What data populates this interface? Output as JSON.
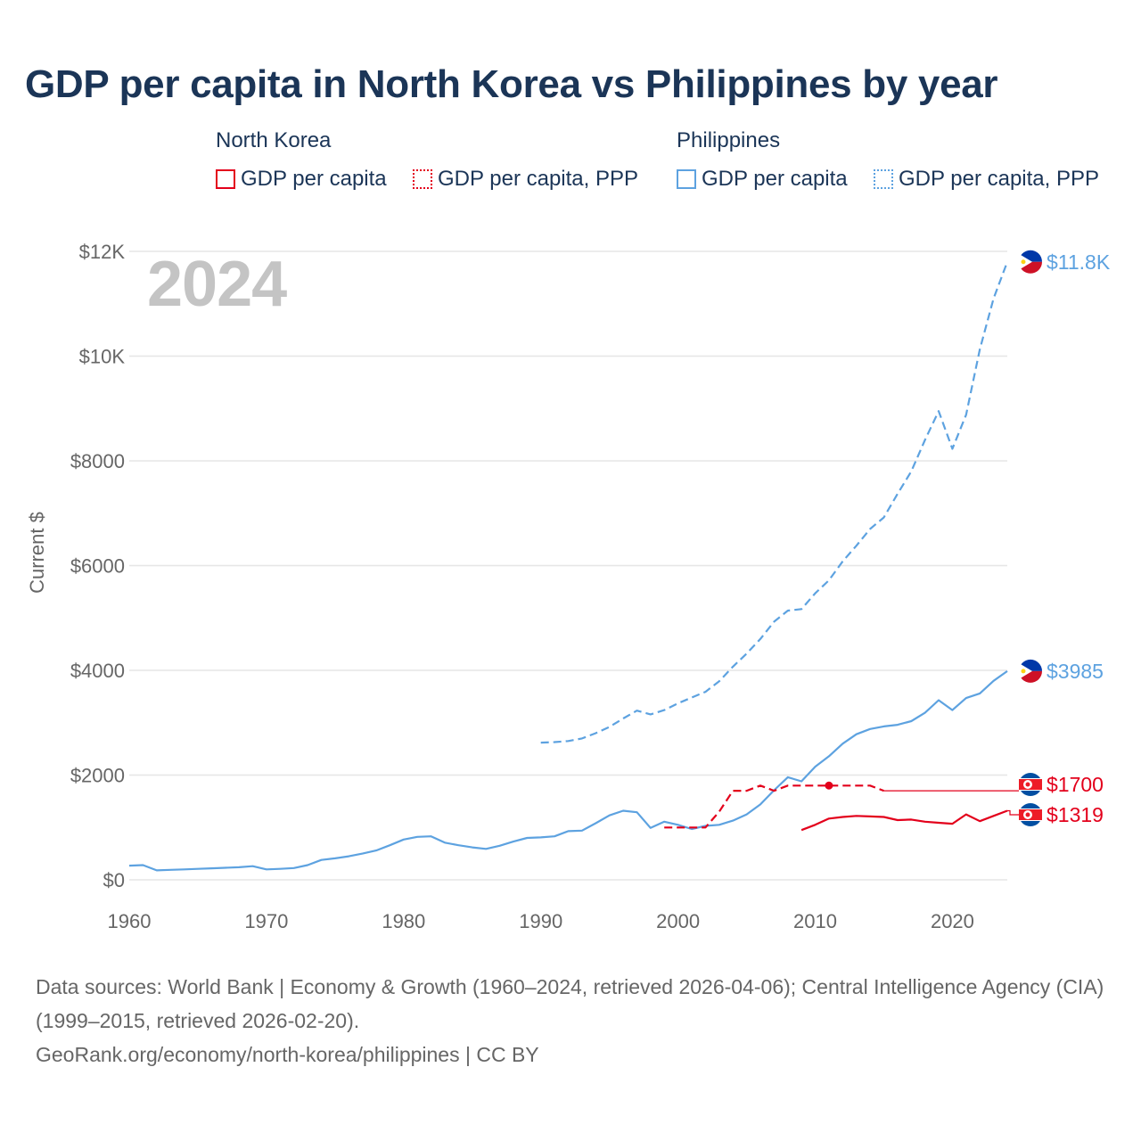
{
  "title": "GDP per capita in North Korea vs Philippines by year",
  "legend": {
    "groups": [
      {
        "name": "North Korea",
        "items": [
          "GDP per capita",
          "GDP per capita, PPP"
        ],
        "color": "#e3001b"
      },
      {
        "name": "Philippines",
        "items": [
          "GDP per capita",
          "GDP per capita, PPP"
        ],
        "color": "#5da2e0"
      }
    ]
  },
  "year_label": "2024",
  "colors": {
    "north_korea": "#e3001b",
    "philippines": "#5da2e0",
    "title": "#1b3557",
    "grid": "#e6e6e6",
    "axis_text": "#666666"
  },
  "chart_data": {
    "type": "line",
    "title": "GDP per capita in North Korea vs Philippines by year",
    "xlabel": "",
    "ylabel": "Current $",
    "xlim": [
      1960,
      2024
    ],
    "ylim": [
      0,
      12000
    ],
    "x_ticks": [
      1960,
      1970,
      1980,
      1990,
      2000,
      2010,
      2020
    ],
    "x_tick_labels": [
      "1960",
      "1970",
      "1980",
      "1990",
      "2000",
      "2010",
      "2020"
    ],
    "y_ticks": [
      0,
      2000,
      4000,
      6000,
      8000,
      10000,
      12000
    ],
    "y_tick_labels": [
      "$0",
      "$2000",
      "$4000",
      "$6000",
      "$8000",
      "$10K",
      "$12K"
    ],
    "grid": true,
    "series": [
      {
        "name": "Philippines GDP per capita, PPP",
        "country": "Philippines",
        "style": "dashed",
        "color": "#5da2e0",
        "x": [
          1990,
          1991,
          1992,
          1993,
          1994,
          1995,
          1996,
          1997,
          1998,
          1999,
          2000,
          2001,
          2002,
          2003,
          2004,
          2005,
          2006,
          2007,
          2008,
          2009,
          2010,
          2011,
          2012,
          2013,
          2014,
          2015,
          2016,
          2017,
          2018,
          2019,
          2020,
          2021,
          2022,
          2023,
          2024
        ],
        "y": [
          2620,
          2630,
          2650,
          2700,
          2800,
          2920,
          3080,
          3230,
          3160,
          3240,
          3370,
          3480,
          3590,
          3790,
          4070,
          4320,
          4600,
          4930,
          5140,
          5170,
          5470,
          5720,
          6080,
          6380,
          6700,
          6920,
          7370,
          7800,
          8400,
          8950,
          8230,
          8880,
          10130,
          11100,
          11800
        ],
        "end_label": "$11.8K"
      },
      {
        "name": "Philippines GDP per capita",
        "country": "Philippines",
        "style": "solid",
        "color": "#5da2e0",
        "x": [
          1960,
          1961,
          1962,
          1963,
          1964,
          1965,
          1966,
          1967,
          1968,
          1969,
          1970,
          1971,
          1972,
          1973,
          1974,
          1975,
          1976,
          1977,
          1978,
          1979,
          1980,
          1981,
          1982,
          1983,
          1984,
          1985,
          1986,
          1987,
          1988,
          1989,
          1990,
          1991,
          1992,
          1993,
          1994,
          1995,
          1996,
          1997,
          1998,
          1999,
          2000,
          2001,
          2002,
          2003,
          2004,
          2005,
          2006,
          2007,
          2008,
          2009,
          2010,
          2011,
          2012,
          2013,
          2014,
          2015,
          2016,
          2017,
          2018,
          2019,
          2020,
          2021,
          2022,
          2023,
          2024
        ],
        "y": [
          270,
          280,
          180,
          190,
          200,
          210,
          220,
          230,
          240,
          260,
          200,
          210,
          225,
          280,
          380,
          410,
          450,
          500,
          560,
          660,
          770,
          820,
          830,
          710,
          660,
          620,
          590,
          650,
          730,
          800,
          810,
          830,
          930,
          940,
          1080,
          1230,
          1320,
          1290,
          990,
          1110,
          1050,
          970,
          1030,
          1050,
          1130,
          1250,
          1440,
          1710,
          1960,
          1880,
          2160,
          2360,
          2600,
          2780,
          2880,
          2930,
          2960,
          3030,
          3190,
          3430,
          3240,
          3470,
          3560,
          3800,
          3985
        ],
        "end_label": "$3985"
      },
      {
        "name": "North Korea GDP per capita, PPP",
        "country": "North Korea",
        "style": "dashed",
        "color": "#e3001b",
        "x": [
          1999,
          2000,
          2001,
          2002,
          2003,
          2004,
          2005,
          2006,
          2007,
          2008,
          2009,
          2010,
          2011,
          2012,
          2013,
          2014,
          2015
        ],
        "y": [
          1000,
          1000,
          1000,
          1000,
          1300,
          1700,
          1700,
          1800,
          1700,
          1800,
          1800,
          1800,
          1800,
          1800,
          1800,
          1800,
          1700
        ],
        "end_label": "$1700"
      },
      {
        "name": "North Korea GDP per capita",
        "country": "North Korea",
        "style": "solid",
        "color": "#e3001b",
        "x": [
          2009,
          2010,
          2011,
          2012,
          2013,
          2014,
          2015,
          2016,
          2017,
          2018,
          2019,
          2020,
          2021,
          2022,
          2023,
          2024
        ],
        "y": [
          950,
          1050,
          1170,
          1200,
          1220,
          1210,
          1200,
          1140,
          1150,
          1110,
          1090,
          1070,
          1250,
          1120,
          1220,
          1319
        ],
        "end_label": "$1319"
      }
    ]
  },
  "footer": {
    "sources": "Data sources: World Bank | Economy & Growth (1960–2024, retrieved 2026-04-06); Central Intelligence Agency (CIA) (1999–2015, retrieved 2026-02-20).",
    "attribution": "GeoRank.org/economy/north-korea/philippines | CC BY"
  }
}
